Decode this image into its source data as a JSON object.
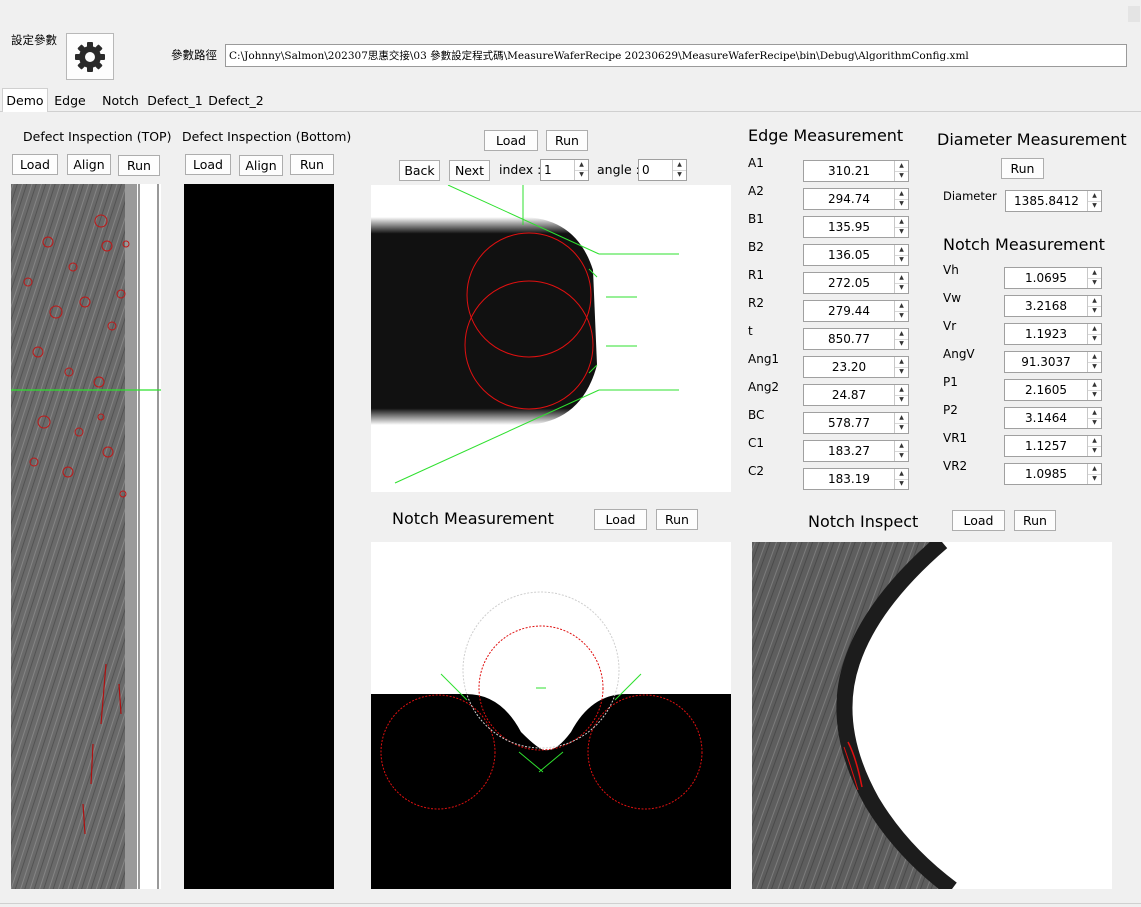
{
  "settings": {
    "title": "設定參數",
    "path_label": "參數路徑",
    "path_value": "C:\\Johnny\\Salmon\\202307思惠交接\\03 參數設定程式碼\\MeasureWaferRecipe 20230629\\MeasureWaferRecipe\\bin\\Debug\\AlgorithmConfig.xml",
    "gear_icon": "gear-icon"
  },
  "tabs": [
    "Demo",
    "Edge",
    "Notch",
    "Defect_1",
    "Defect_2"
  ],
  "active_tab": "Demo",
  "defect_top": {
    "title": "Defect Inspection (TOP)",
    "load": "Load",
    "align": "Align",
    "run": "Run"
  },
  "defect_bottom": {
    "title": "Defect Inspection (Bottom)",
    "load": "Load",
    "align": "Align",
    "run": "Run"
  },
  "edge_view": {
    "load": "Load",
    "run": "Run",
    "back": "Back",
    "next": "Next",
    "index_label": "index :",
    "index_value": "1",
    "angle_label": "angle :",
    "angle_value": "0"
  },
  "edge_measurement": {
    "title": "Edge Measurement",
    "rows": [
      {
        "label": "A1",
        "value": "310.21"
      },
      {
        "label": "A2",
        "value": "294.74"
      },
      {
        "label": "B1",
        "value": "135.95"
      },
      {
        "label": "B2",
        "value": "136.05"
      },
      {
        "label": "R1",
        "value": "272.05"
      },
      {
        "label": "R2",
        "value": "279.44"
      },
      {
        "label": "t",
        "value": "850.77"
      },
      {
        "label": "Ang1",
        "value": "23.20"
      },
      {
        "label": "Ang2",
        "value": "24.87"
      },
      {
        "label": "BC",
        "value": "578.77"
      },
      {
        "label": "C1",
        "value": "183.27"
      },
      {
        "label": "C2",
        "value": "183.19"
      }
    ]
  },
  "diameter_measurement": {
    "title": "Diameter Measurement",
    "run": "Run",
    "label": "Diameter",
    "value": "1385.8412"
  },
  "notch_measurement_values": {
    "title": "Notch Measurement",
    "rows": [
      {
        "label": "Vh",
        "value": "1.0695"
      },
      {
        "label": "Vw",
        "value": "3.2168"
      },
      {
        "label": "Vr",
        "value": "1.1923"
      },
      {
        "label": "AngV",
        "value": "91.3037"
      },
      {
        "label": "P1",
        "value": "2.1605"
      },
      {
        "label": "P2",
        "value": "3.1464"
      },
      {
        "label": "VR1",
        "value": "1.1257"
      },
      {
        "label": "VR2",
        "value": "1.0985"
      }
    ]
  },
  "notch_view": {
    "title": "Notch Measurement",
    "load": "Load",
    "run": "Run"
  },
  "notch_inspect": {
    "title": "Notch Inspect",
    "load": "Load",
    "run": "Run"
  },
  "colors": {
    "overlay_green": "#2fe02f",
    "overlay_red": "#e01010",
    "image_black": "#000000"
  }
}
